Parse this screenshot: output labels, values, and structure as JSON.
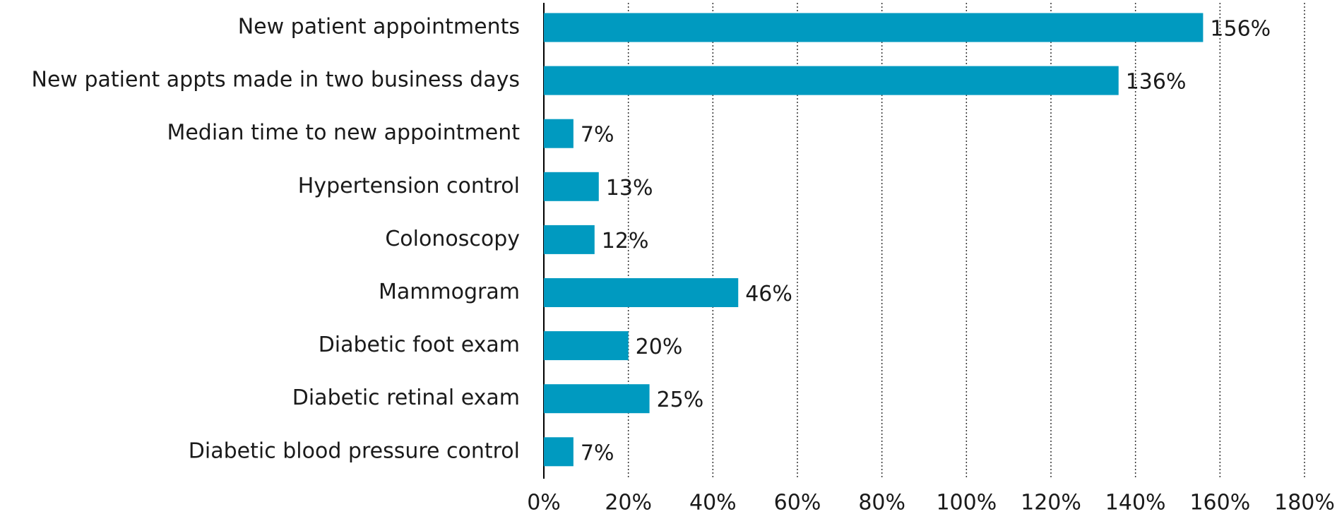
{
  "chart_data": {
    "type": "hbar",
    "categories": [
      "New patient appointments",
      "New patient appts made in two business days",
      "Median time to new appointment",
      "Hypertension control",
      "Colonoscopy",
      "Mammogram",
      "Diabetic foot exam",
      "Diabetic retinal exam",
      "Diabetic blood pressure control"
    ],
    "values": [
      156,
      136,
      7,
      13,
      12,
      46,
      20,
      25,
      7
    ],
    "value_labels": [
      "156%",
      "136%",
      "7%",
      "13%",
      "12%",
      "46%",
      "20%",
      "25%",
      "7%"
    ],
    "color": "#009ac0",
    "xlim": [
      0,
      180
    ],
    "xticks": [
      {
        "value": 0,
        "label": "0%"
      },
      {
        "value": 20,
        "label": "20%"
      },
      {
        "value": 40,
        "label": "40%"
      },
      {
        "value": 60,
        "label": "60%"
      },
      {
        "value": 80,
        "label": "80%"
      },
      {
        "value": 100,
        "label": "100%"
      },
      {
        "value": 120,
        "label": "120%"
      },
      {
        "value": 140,
        "label": "140%"
      },
      {
        "value": 160,
        "label": "160%"
      },
      {
        "value": 180,
        "label": "180%"
      }
    ],
    "grid": true
  }
}
